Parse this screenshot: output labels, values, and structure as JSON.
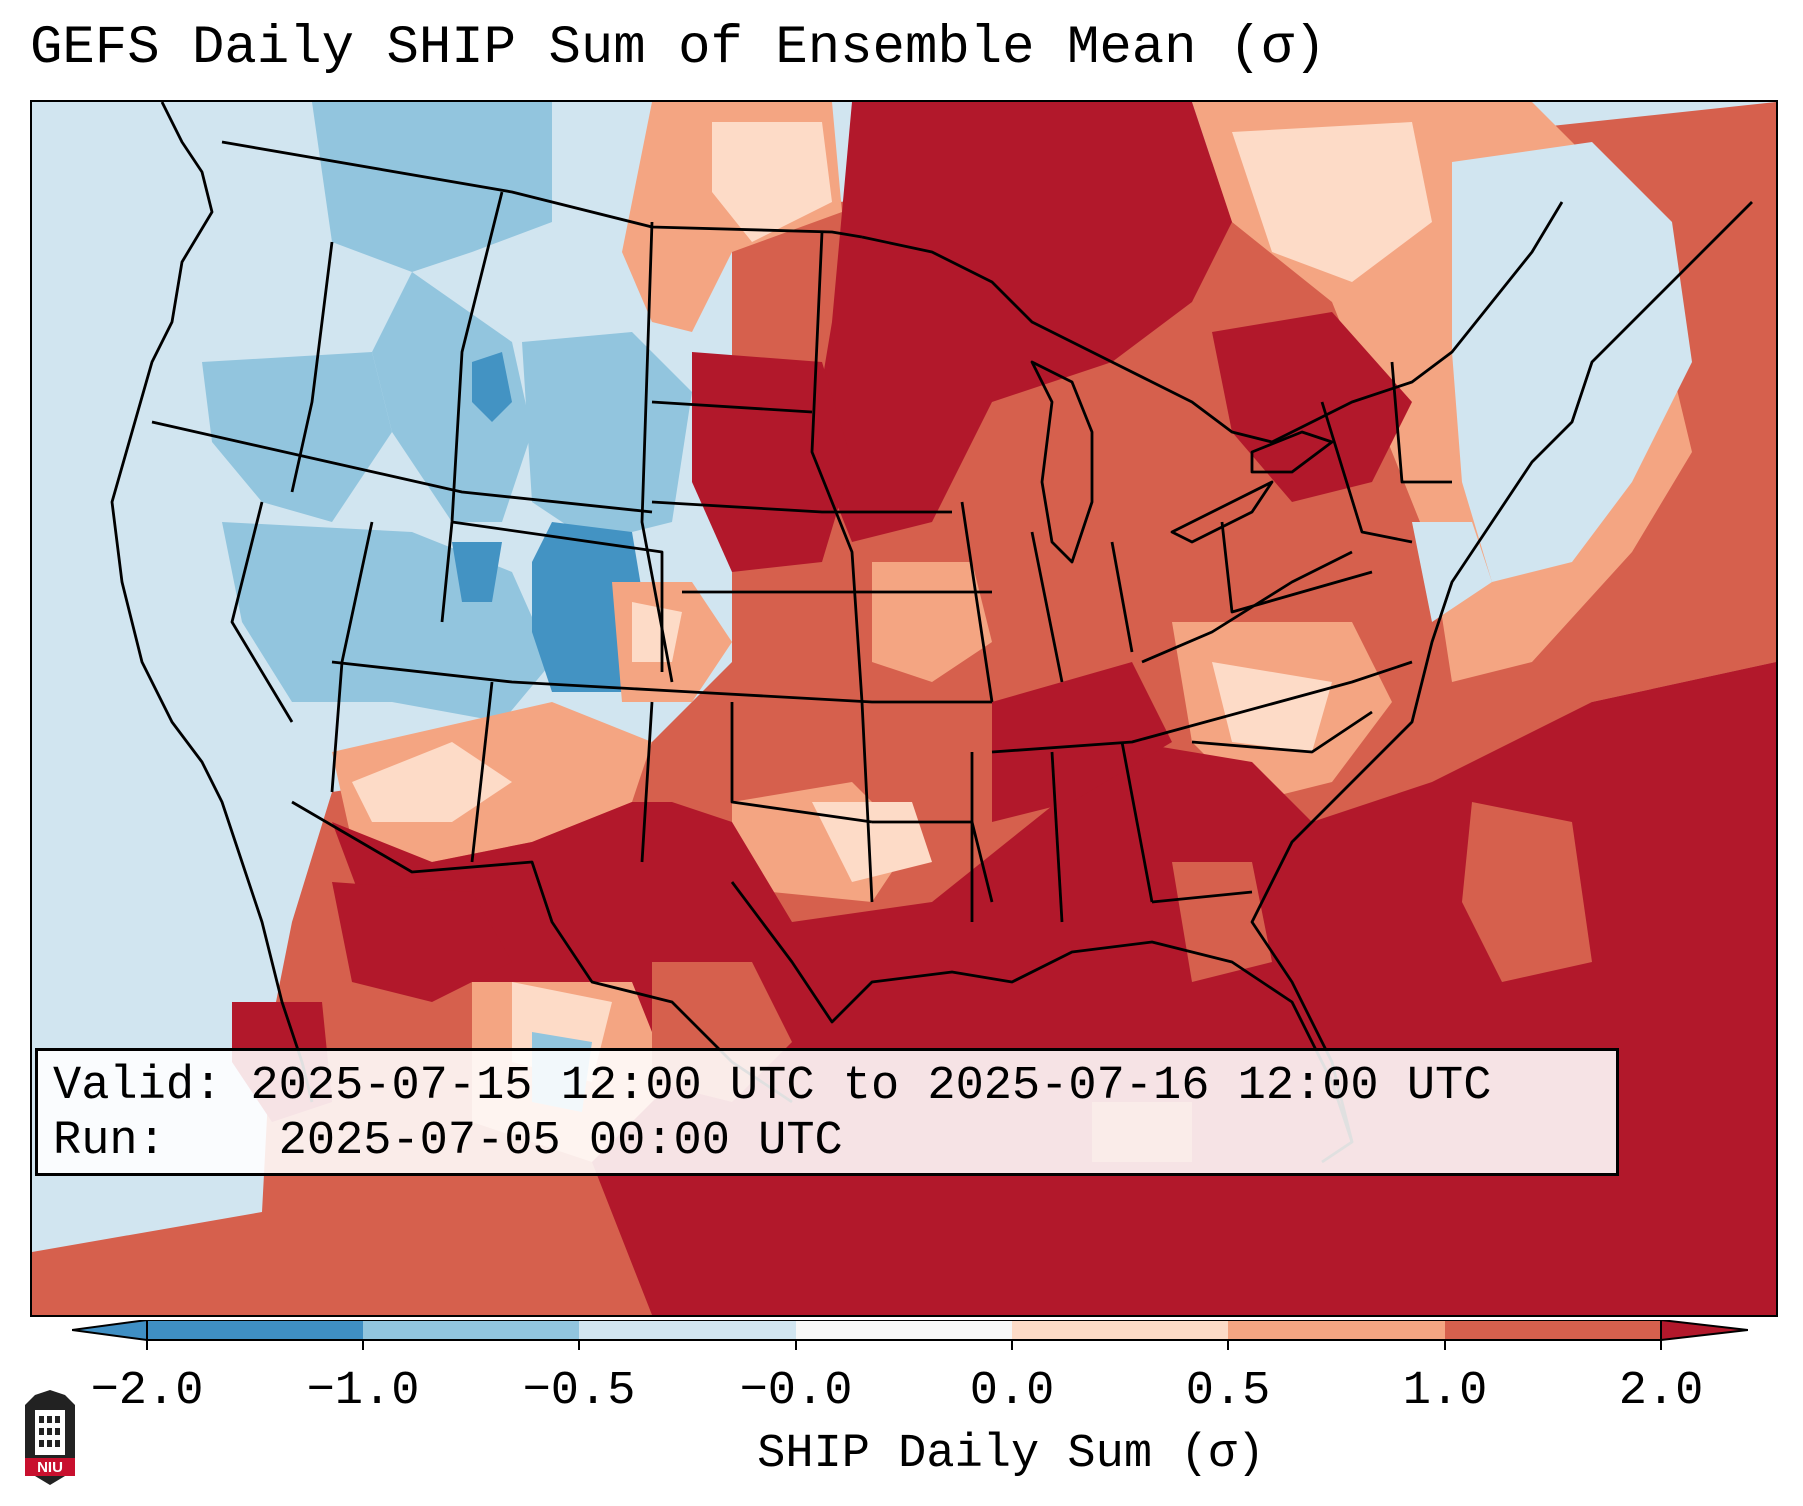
{
  "title": "GEFS Daily SHIP Sum of Ensemble Mean (σ)",
  "info": {
    "valid_label": "Valid:",
    "valid_value": "2025-07-15 12:00 UTC to 2025-07-16 12:00 UTC",
    "run_label": "Run:",
    "run_value": "2025-07-05 00:00 UTC"
  },
  "colorbar": {
    "label": "SHIP Daily Sum (σ)",
    "ticks": [
      "−2.0",
      "−1.0",
      "−0.5",
      "−0.0",
      "0.0",
      "0.5",
      "1.0",
      "2.0"
    ],
    "bin_colors": [
      "#3f8fc4",
      "#92c5de",
      "#d1e5f0",
      "#f7f7f7",
      "#fddbc7",
      "#f4a582",
      "#d6604d",
      "#b2182b"
    ],
    "under_color": "#2166ac",
    "over_color": "#67001f"
  },
  "map": {
    "region": "Contiguous United States",
    "field": "SHIP daily sum anomaly",
    "colors": {
      "ocean_low": "#d1e5f0",
      "strong_pos": "#b2182b",
      "pos": "#d6604d",
      "weak_pos": "#f4a582",
      "slight_pos": "#fddbc7",
      "neutral": "#f7f7f7",
      "slight_neg": "#d1e5f0",
      "neg": "#92c5de",
      "strong_neg": "#4393c3"
    }
  },
  "logo": {
    "text": "NIU",
    "icon": "niu-building-logo"
  }
}
